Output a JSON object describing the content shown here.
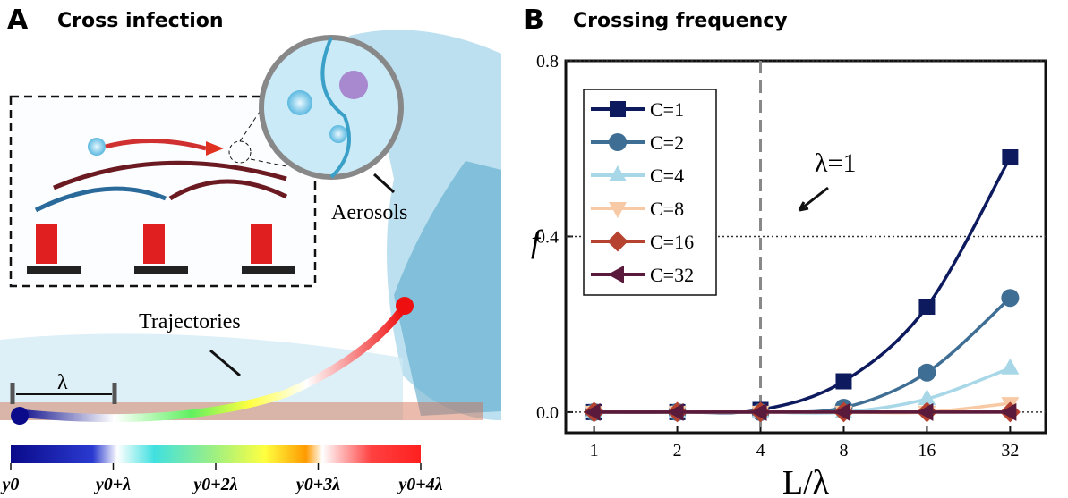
{
  "panel_a": {
    "letter": "A",
    "title": "Cross infection",
    "aerosols": "Aerosols",
    "trajectories": "Trajectories",
    "lambda": "λ",
    "colorbar_labels": [
      "y0",
      "y0+λ",
      "y0+2λ",
      "y0+3λ",
      "y0+4λ"
    ]
  },
  "chart_data": {
    "type": "line",
    "letter": "B",
    "title": "Crossing frequency",
    "x_label": "L/λ",
    "y_label": "f",
    "annotation": "λ=1",
    "vline": 4,
    "xscale": "log2",
    "x": [
      1,
      2,
      4,
      8,
      16,
      32
    ],
    "xlim": [
      0.79,
      43
    ],
    "xticks": [
      1,
      2,
      4,
      8,
      16,
      32
    ],
    "ylim": [
      -0.047,
      0.8
    ],
    "yticks": [
      {
        "value": 0,
        "label": "0.0"
      },
      {
        "value": 0.4,
        "label": "0.4"
      },
      {
        "value": 0.8,
        "label": "0.8"
      }
    ],
    "legend": "upper left",
    "series": [
      {
        "name": "C=1",
        "color": "#0d1a5e",
        "marker": "square",
        "values": [
          0,
          0,
          0.005,
          0.07,
          0.24,
          0.58
        ]
      },
      {
        "name": "C=2",
        "color": "#3f6e94",
        "marker": "circle",
        "values": [
          0,
          0,
          0,
          0.01,
          0.09,
          0.26
        ]
      },
      {
        "name": "C=4",
        "color": "#a8d8e8",
        "marker": "triangle-up",
        "values": [
          0,
          0,
          0,
          0,
          0.03,
          0.1
        ]
      },
      {
        "name": "C=8",
        "color": "#f7c9a4",
        "marker": "triangle-down",
        "values": [
          0,
          0,
          0,
          0,
          0,
          0.02
        ]
      },
      {
        "name": "C=16",
        "color": "#b5432f",
        "marker": "diamond",
        "values": [
          0,
          0,
          0,
          0,
          0,
          0
        ]
      },
      {
        "name": "C=32",
        "color": "#5a1a3c",
        "marker": "triangle-left",
        "values": [
          0,
          0,
          0,
          0,
          0,
          0
        ]
      }
    ]
  }
}
